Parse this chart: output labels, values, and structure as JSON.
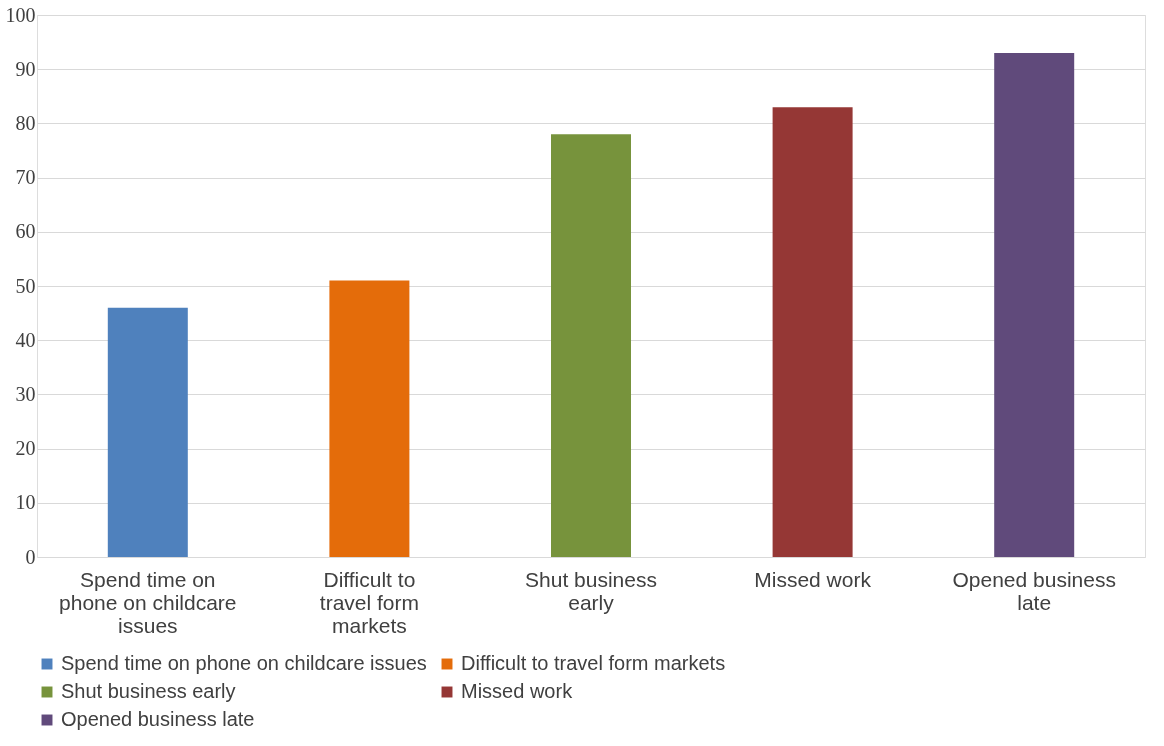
{
  "chart_data": {
    "type": "bar",
    "categories": [
      "Spend time on phone on childcare issues",
      "Difficult to travel form markets",
      "Shut business early",
      "Missed work",
      "Opened business late"
    ],
    "series": [
      {
        "name": "Spend time on phone on childcare issues",
        "color": "#4f81bd",
        "values": [
          46,
          null,
          null,
          null,
          null
        ]
      },
      {
        "name": "Difficult to travel form markets",
        "color": "#e46c0a",
        "values": [
          null,
          51,
          null,
          null,
          null
        ]
      },
      {
        "name": "Shut business early",
        "color": "#77933c",
        "values": [
          null,
          null,
          78,
          null,
          null
        ]
      },
      {
        "name": "Missed work",
        "color": "#953735",
        "values": [
          null,
          null,
          null,
          83,
          null
        ]
      },
      {
        "name": "Opened business late",
        "color": "#604a7b",
        "values": [
          null,
          null,
          null,
          null,
          93
        ]
      }
    ],
    "ylim": [
      0,
      100
    ],
    "yticks": [
      0,
      10,
      20,
      30,
      40,
      50,
      60,
      70,
      80,
      90,
      100
    ],
    "grid": "y",
    "legend": "bottom"
  }
}
